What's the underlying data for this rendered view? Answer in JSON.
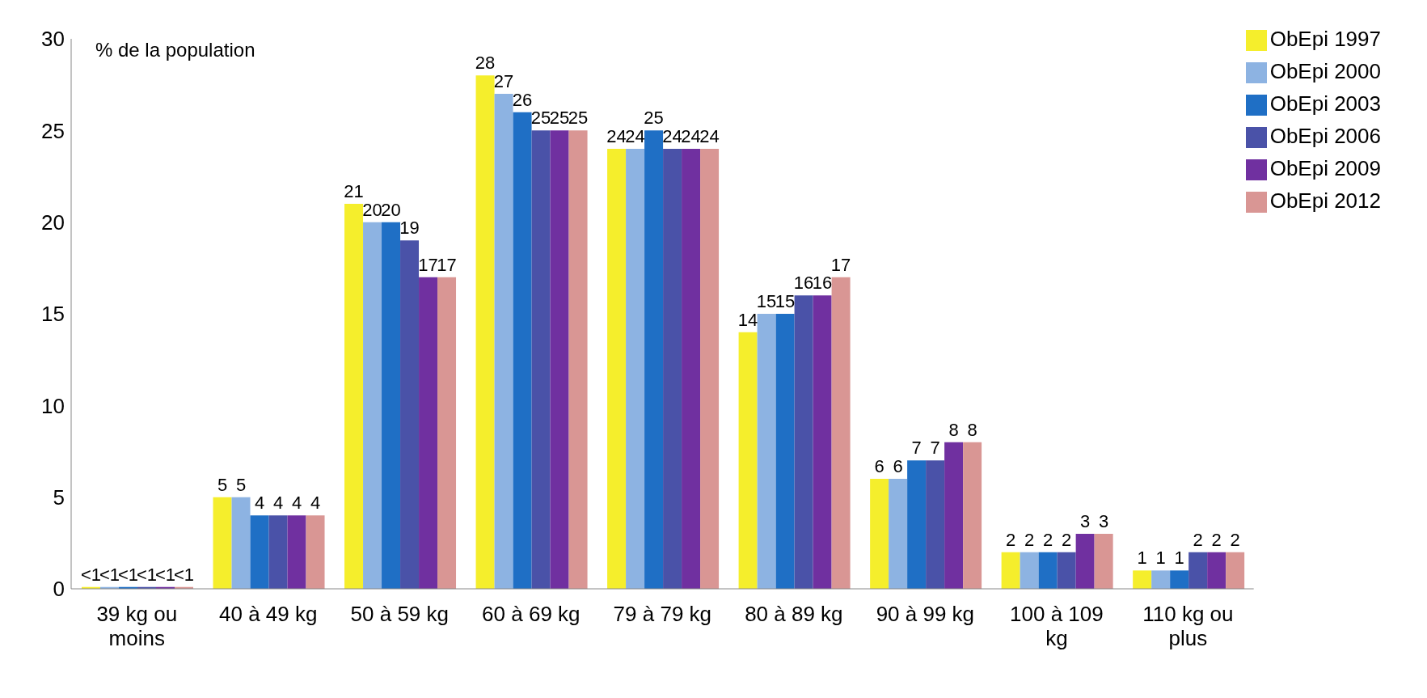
{
  "chart_data": {
    "type": "bar",
    "ylabel": "% de la population",
    "categories": [
      "39 kg ou moins",
      "40 à 49 kg",
      "50 à 59 kg",
      "60 à 69 kg",
      "79 à 79 kg",
      "80 à 89 kg",
      "90 à 99 kg",
      "100 à 109 kg",
      "110 kg ou plus"
    ],
    "series": [
      {
        "name": "ObEpi 1997",
        "color": "#f5ee2c",
        "values": [
          0.1,
          5,
          21,
          28,
          24,
          14,
          6,
          2,
          1
        ],
        "value_labels": [
          "<1",
          "5",
          "21",
          "28",
          "24",
          "14",
          "6",
          "2",
          "1"
        ]
      },
      {
        "name": "ObEpi 2000",
        "color": "#8db3e2",
        "values": [
          0.1,
          5,
          20,
          27,
          24,
          15,
          6,
          2,
          1
        ],
        "value_labels": [
          "<1",
          "5",
          "20",
          "27",
          "24",
          "15",
          "6",
          "2",
          "1"
        ]
      },
      {
        "name": "ObEpi 2003",
        "color": "#1f6fc5",
        "values": [
          0.1,
          4,
          20,
          26,
          25,
          15,
          7,
          2,
          1
        ],
        "value_labels": [
          "<1",
          "4",
          "20",
          "26",
          "25",
          "15",
          "7",
          "2",
          "1"
        ]
      },
      {
        "name": "ObEpi 2006",
        "color": "#4a52a8",
        "values": [
          0.1,
          4,
          19,
          25,
          24,
          16,
          7,
          2,
          2
        ],
        "value_labels": [
          "<1",
          "4",
          "19",
          "25",
          "24",
          "16",
          "7",
          "2",
          "2"
        ]
      },
      {
        "name": "ObEpi 2009",
        "color": "#7030a0",
        "values": [
          0.1,
          4,
          17,
          25,
          24,
          16,
          8,
          3,
          2
        ],
        "value_labels": [
          "<1",
          "4",
          "17",
          "25",
          "24",
          "16",
          "8",
          "3",
          "2"
        ]
      },
      {
        "name": "ObEpi 2012",
        "color": "#d99694",
        "values": [
          0.1,
          4,
          17,
          25,
          24,
          17,
          8,
          3,
          2
        ],
        "value_labels": [
          "<1",
          "4",
          "17",
          "25",
          "24",
          "17",
          "8",
          "3",
          "2"
        ]
      }
    ],
    "ylim": [
      0,
      30
    ],
    "yticks": [
      0,
      5,
      10,
      15,
      20,
      25,
      30
    ],
    "grid": false,
    "legend": "top right"
  }
}
